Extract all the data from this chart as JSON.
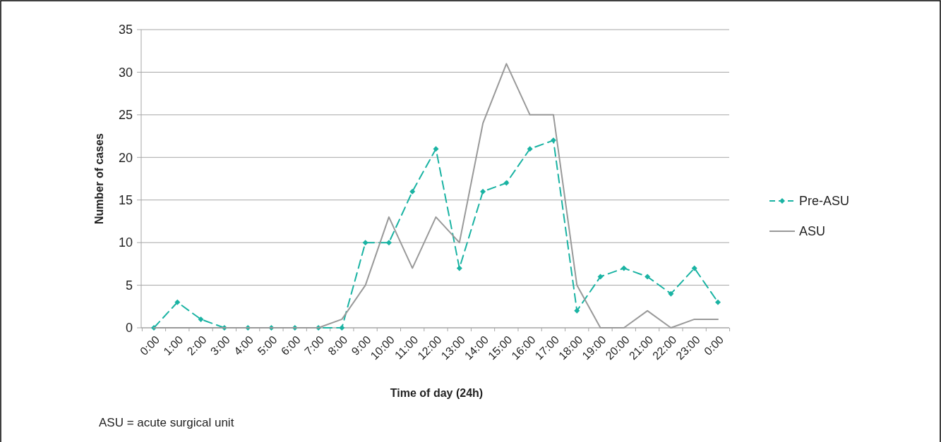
{
  "chart_data": {
    "type": "line",
    "xlabel": "Time of day (24h)",
    "ylabel": "Number of cases",
    "categories": [
      "0:00",
      "1:00",
      "2:00",
      "3:00",
      "4:00",
      "5:00",
      "6:00",
      "7:00",
      "8:00",
      "9:00",
      "10:00",
      "11:00",
      "12:00",
      "13:00",
      "14:00",
      "15:00",
      "16:00",
      "17:00",
      "18:00",
      "19:00",
      "20:00",
      "21:00",
      "22:00",
      "23:00",
      "0:00"
    ],
    "series": [
      {
        "name": "Pre-ASU",
        "color": "#1ab3a3",
        "line_style": "dashed",
        "marker": "diamond",
        "values": [
          0,
          3,
          1,
          0,
          0,
          0,
          0,
          0,
          0,
          10,
          10,
          16,
          21,
          7,
          16,
          17,
          21,
          22,
          2,
          6,
          7,
          6,
          4,
          7,
          3
        ]
      },
      {
        "name": "ASU",
        "color": "#999999",
        "line_style": "solid",
        "marker": "none",
        "values": [
          0,
          0,
          0,
          0,
          0,
          0,
          0,
          0,
          1,
          5,
          13,
          7,
          13,
          10,
          24,
          31,
          25,
          25,
          5,
          0,
          0,
          2,
          0,
          1,
          1
        ]
      }
    ],
    "ylim": [
      0,
      35
    ],
    "yticks": [
      0,
      5,
      10,
      15,
      20,
      25,
      30,
      35
    ],
    "grid": "y",
    "legend": "right",
    "annotations": [
      "ASU = acute surgical unit"
    ]
  }
}
